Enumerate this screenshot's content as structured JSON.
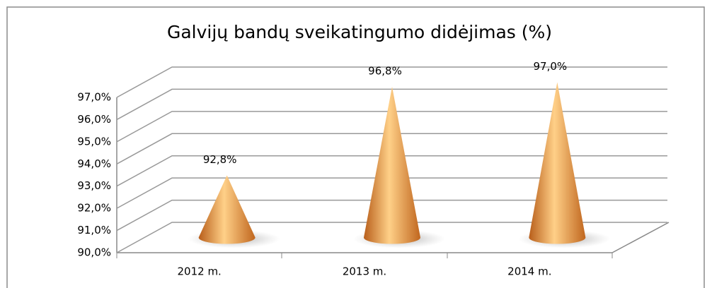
{
  "chart_data": {
    "type": "cone3d",
    "title": "Galvijų bandų sveikatingumo didėjimas (%)",
    "categories": [
      "2012 m.",
      "2013 m.",
      "2014 m."
    ],
    "values": [
      92.8,
      96.8,
      97.0
    ],
    "value_labels": [
      "92,8%",
      "96,8%",
      "97,0%"
    ],
    "color": "#f0a050",
    "ylim": [
      90,
      97
    ],
    "yticks": [
      {
        "value": 90,
        "label": "90,0%"
      },
      {
        "value": 91,
        "label": "91,0%"
      },
      {
        "value": 92,
        "label": "92,0%"
      },
      {
        "value": 93,
        "label": "93,0%"
      },
      {
        "value": 94,
        "label": "94,0%"
      },
      {
        "value": 95,
        "label": "95,0%"
      },
      {
        "value": 96,
        "label": "96,0%"
      },
      {
        "value": 97,
        "label": "97,0%"
      }
    ],
    "grid": true
  }
}
